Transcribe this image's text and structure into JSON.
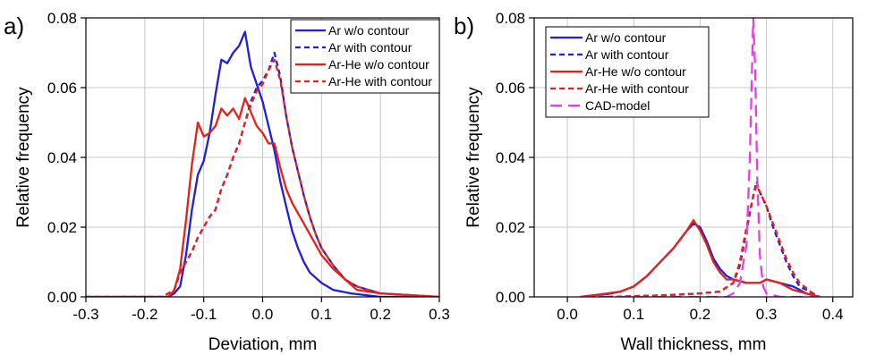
{
  "chart_data": [
    {
      "type": "line",
      "panel_label": "a)",
      "xlabel": "Deviation, mm",
      "ylabel": "Relative frequency",
      "xlim": [
        -0.3,
        0.3
      ],
      "ylim": [
        0,
        0.08
      ],
      "xticks": [
        "-0.3",
        "-0.2",
        "-0.1",
        "0.0",
        "0.1",
        "0.2",
        "0.3"
      ],
      "yticks": [
        "0.00",
        "0.02",
        "0.04",
        "0.06",
        "0.08"
      ],
      "grid": true,
      "legend_position": "top-right",
      "series": [
        {
          "name": "Ar w/o contour",
          "color": "#1f1fdc",
          "dash": "solid",
          "points": [
            [
              -0.3,
              0
            ],
            [
              -0.2,
              0
            ],
            [
              -0.16,
              0
            ],
            [
              -0.15,
              0.001
            ],
            [
              -0.14,
              0.003
            ],
            [
              -0.13,
              0.012
            ],
            [
              -0.12,
              0.025
            ],
            [
              -0.11,
              0.035
            ],
            [
              -0.1,
              0.039
            ],
            [
              -0.09,
              0.047
            ],
            [
              -0.08,
              0.058
            ],
            [
              -0.07,
              0.068
            ],
            [
              -0.06,
              0.067
            ],
            [
              -0.05,
              0.07
            ],
            [
              -0.04,
              0.072
            ],
            [
              -0.03,
              0.076
            ],
            [
              -0.02,
              0.066
            ],
            [
              -0.01,
              0.061
            ],
            [
              0.0,
              0.056
            ],
            [
              0.01,
              0.049
            ],
            [
              0.02,
              0.042
            ],
            [
              0.03,
              0.033
            ],
            [
              0.04,
              0.026
            ],
            [
              0.05,
              0.019
            ],
            [
              0.06,
              0.014
            ],
            [
              0.07,
              0.01
            ],
            [
              0.08,
              0.007
            ],
            [
              0.1,
              0.004
            ],
            [
              0.12,
              0.002
            ],
            [
              0.15,
              0.001
            ],
            [
              0.2,
              0
            ],
            [
              0.3,
              0
            ]
          ]
        },
        {
          "name": "Ar with contour",
          "color": "#1f1fdc",
          "dash": "dashed",
          "points": [
            [
              -0.3,
              0
            ],
            [
              -0.2,
              0
            ],
            [
              -0.17,
              0
            ],
            [
              -0.15,
              0.002
            ],
            [
              -0.14,
              0.007
            ],
            [
              -0.13,
              0.01
            ],
            [
              -0.12,
              0.013
            ],
            [
              -0.11,
              0.017
            ],
            [
              -0.1,
              0.02
            ],
            [
              -0.09,
              0.023
            ],
            [
              -0.08,
              0.025
            ],
            [
              -0.07,
              0.031
            ],
            [
              -0.06,
              0.035
            ],
            [
              -0.05,
              0.04
            ],
            [
              -0.04,
              0.044
            ],
            [
              -0.03,
              0.05
            ],
            [
              -0.02,
              0.056
            ],
            [
              -0.01,
              0.06
            ],
            [
              0.0,
              0.062
            ],
            [
              0.01,
              0.065
            ],
            [
              0.02,
              0.07
            ],
            [
              0.03,
              0.063
            ],
            [
              0.04,
              0.052
            ],
            [
              0.05,
              0.043
            ],
            [
              0.06,
              0.036
            ],
            [
              0.07,
              0.029
            ],
            [
              0.08,
              0.023
            ],
            [
              0.09,
              0.018
            ],
            [
              0.1,
              0.014
            ],
            [
              0.12,
              0.009
            ],
            [
              0.14,
              0.005
            ],
            [
              0.16,
              0.003
            ],
            [
              0.2,
              0.001
            ],
            [
              0.3,
              0
            ]
          ]
        },
        {
          "name": "Ar-He w/o contour",
          "color": "#e8201a",
          "dash": "solid",
          "points": [
            [
              -0.3,
              0
            ],
            [
              -0.2,
              0
            ],
            [
              -0.16,
              0
            ],
            [
              -0.15,
              0.002
            ],
            [
              -0.14,
              0.008
            ],
            [
              -0.13,
              0.022
            ],
            [
              -0.12,
              0.038
            ],
            [
              -0.11,
              0.05
            ],
            [
              -0.1,
              0.046
            ],
            [
              -0.09,
              0.047
            ],
            [
              -0.08,
              0.049
            ],
            [
              -0.07,
              0.054
            ],
            [
              -0.06,
              0.052
            ],
            [
              -0.05,
              0.054
            ],
            [
              -0.04,
              0.051
            ],
            [
              -0.03,
              0.057
            ],
            [
              -0.02,
              0.053
            ],
            [
              -0.01,
              0.049
            ],
            [
              0.0,
              0.047
            ],
            [
              0.01,
              0.044
            ],
            [
              0.02,
              0.044
            ],
            [
              0.03,
              0.037
            ],
            [
              0.04,
              0.031
            ],
            [
              0.05,
              0.027
            ],
            [
              0.06,
              0.024
            ],
            [
              0.07,
              0.021
            ],
            [
              0.08,
              0.018
            ],
            [
              0.09,
              0.015
            ],
            [
              0.1,
              0.012
            ],
            [
              0.12,
              0.008
            ],
            [
              0.14,
              0.005
            ],
            [
              0.16,
              0.002
            ],
            [
              0.2,
              0.001
            ],
            [
              0.3,
              0
            ]
          ]
        },
        {
          "name": "Ar-He with contour",
          "color": "#e8201a",
          "dash": "dashed",
          "points": [
            [
              -0.3,
              0
            ],
            [
              -0.2,
              0
            ],
            [
              -0.17,
              0
            ],
            [
              -0.15,
              0.002
            ],
            [
              -0.14,
              0.007
            ],
            [
              -0.13,
              0.01
            ],
            [
              -0.12,
              0.013
            ],
            [
              -0.11,
              0.017
            ],
            [
              -0.1,
              0.02
            ],
            [
              -0.09,
              0.023
            ],
            [
              -0.08,
              0.025
            ],
            [
              -0.07,
              0.031
            ],
            [
              -0.06,
              0.035
            ],
            [
              -0.05,
              0.04
            ],
            [
              -0.04,
              0.044
            ],
            [
              -0.03,
              0.05
            ],
            [
              -0.02,
              0.055
            ],
            [
              -0.01,
              0.059
            ],
            [
              0.0,
              0.061
            ],
            [
              0.01,
              0.065
            ],
            [
              0.02,
              0.068
            ],
            [
              0.03,
              0.062
            ],
            [
              0.04,
              0.052
            ],
            [
              0.05,
              0.043
            ],
            [
              0.06,
              0.036
            ],
            [
              0.07,
              0.029
            ],
            [
              0.08,
              0.023
            ],
            [
              0.09,
              0.018
            ],
            [
              0.1,
              0.014
            ],
            [
              0.12,
              0.009
            ],
            [
              0.14,
              0.005
            ],
            [
              0.16,
              0.003
            ],
            [
              0.2,
              0.001
            ],
            [
              0.3,
              0
            ]
          ]
        }
      ]
    },
    {
      "type": "line",
      "panel_label": "b)",
      "xlabel": "Wall thickness, mm",
      "ylabel": "Relative frequency",
      "xlim": [
        -0.05,
        0.43
      ],
      "ylim": [
        0,
        0.08
      ],
      "xticks": [
        "0.0",
        "0.1",
        "0.2",
        "0.3",
        "0.4"
      ],
      "yticks": [
        "0.00",
        "0.02",
        "0.04",
        "0.06",
        "0.08"
      ],
      "grid": true,
      "legend_position": "top-left",
      "series": [
        {
          "name": "Ar w/o contour",
          "color": "#1f1fdc",
          "dash": "solid",
          "points": [
            [
              0.02,
              0
            ],
            [
              0.04,
              0.0005
            ],
            [
              0.06,
              0.0008
            ],
            [
              0.08,
              0.0015
            ],
            [
              0.1,
              0.003
            ],
            [
              0.12,
              0.006
            ],
            [
              0.14,
              0.01
            ],
            [
              0.16,
              0.014
            ],
            [
              0.18,
              0.019
            ],
            [
              0.19,
              0.021
            ],
            [
              0.2,
              0.02
            ],
            [
              0.21,
              0.016
            ],
            [
              0.22,
              0.011
            ],
            [
              0.23,
              0.008
            ],
            [
              0.24,
              0.006
            ],
            [
              0.25,
              0.005
            ],
            [
              0.27,
              0.004
            ],
            [
              0.29,
              0.004
            ],
            [
              0.3,
              0.005
            ],
            [
              0.32,
              0.004
            ],
            [
              0.34,
              0.003
            ],
            [
              0.36,
              0.001
            ],
            [
              0.38,
              0
            ]
          ]
        },
        {
          "name": "Ar with contour",
          "color": "#1f1fdc",
          "dash": "dashed",
          "points": [
            [
              0.02,
              0
            ],
            [
              0.06,
              0
            ],
            [
              0.1,
              0.0002
            ],
            [
              0.15,
              0.0005
            ],
            [
              0.2,
              0.001
            ],
            [
              0.23,
              0.0015
            ],
            [
              0.25,
              0.004
            ],
            [
              0.26,
              0.009
            ],
            [
              0.27,
              0.019
            ],
            [
              0.28,
              0.029
            ],
            [
              0.285,
              0.033
            ],
            [
              0.29,
              0.03
            ],
            [
              0.3,
              0.026
            ],
            [
              0.31,
              0.02
            ],
            [
              0.32,
              0.015
            ],
            [
              0.33,
              0.01
            ],
            [
              0.34,
              0.006
            ],
            [
              0.35,
              0.003
            ],
            [
              0.37,
              0.001
            ],
            [
              0.38,
              0
            ]
          ]
        },
        {
          "name": "Ar-He w/o contour",
          "color": "#e8201a",
          "dash": "solid",
          "points": [
            [
              0.02,
              0
            ],
            [
              0.04,
              0.0005
            ],
            [
              0.06,
              0.001
            ],
            [
              0.08,
              0.0015
            ],
            [
              0.1,
              0.003
            ],
            [
              0.12,
              0.006
            ],
            [
              0.14,
              0.01
            ],
            [
              0.16,
              0.014
            ],
            [
              0.18,
              0.019
            ],
            [
              0.19,
              0.022
            ],
            [
              0.2,
              0.019
            ],
            [
              0.21,
              0.015
            ],
            [
              0.22,
              0.01
            ],
            [
              0.23,
              0.007
            ],
            [
              0.24,
              0.005
            ],
            [
              0.25,
              0.005
            ],
            [
              0.27,
              0.004
            ],
            [
              0.29,
              0.004
            ],
            [
              0.3,
              0.005
            ],
            [
              0.32,
              0.004
            ],
            [
              0.34,
              0.002
            ],
            [
              0.36,
              0.001
            ],
            [
              0.38,
              0
            ]
          ]
        },
        {
          "name": "Ar-He with contour",
          "color": "#e8201a",
          "dash": "dashed",
          "points": [
            [
              0.02,
              0
            ],
            [
              0.06,
              0
            ],
            [
              0.1,
              0.0002
            ],
            [
              0.15,
              0.0005
            ],
            [
              0.2,
              0.001
            ],
            [
              0.23,
              0.0015
            ],
            [
              0.25,
              0.004
            ],
            [
              0.26,
              0.01
            ],
            [
              0.27,
              0.02
            ],
            [
              0.28,
              0.029
            ],
            [
              0.285,
              0.032
            ],
            [
              0.29,
              0.03
            ],
            [
              0.3,
              0.026
            ],
            [
              0.31,
              0.021
            ],
            [
              0.32,
              0.016
            ],
            [
              0.33,
              0.011
            ],
            [
              0.34,
              0.007
            ],
            [
              0.35,
              0.004
            ],
            [
              0.37,
              0.001
            ],
            [
              0.38,
              0
            ]
          ]
        },
        {
          "name": "CAD-model",
          "color": "#e83ee8",
          "dash": "longdash",
          "points": [
            [
              0.02,
              0
            ],
            [
              0.2,
              0
            ],
            [
              0.24,
              0
            ],
            [
              0.25,
              0.001
            ],
            [
              0.26,
              0.004
            ],
            [
              0.27,
              0.015
            ],
            [
              0.275,
              0.04
            ],
            [
              0.28,
              0.08
            ],
            [
              0.283,
              0.065
            ],
            [
              0.286,
              0.035
            ],
            [
              0.29,
              0.012
            ],
            [
              0.295,
              0.003
            ],
            [
              0.3,
              0.001
            ],
            [
              0.32,
              0
            ],
            [
              0.38,
              0
            ]
          ]
        }
      ]
    }
  ]
}
